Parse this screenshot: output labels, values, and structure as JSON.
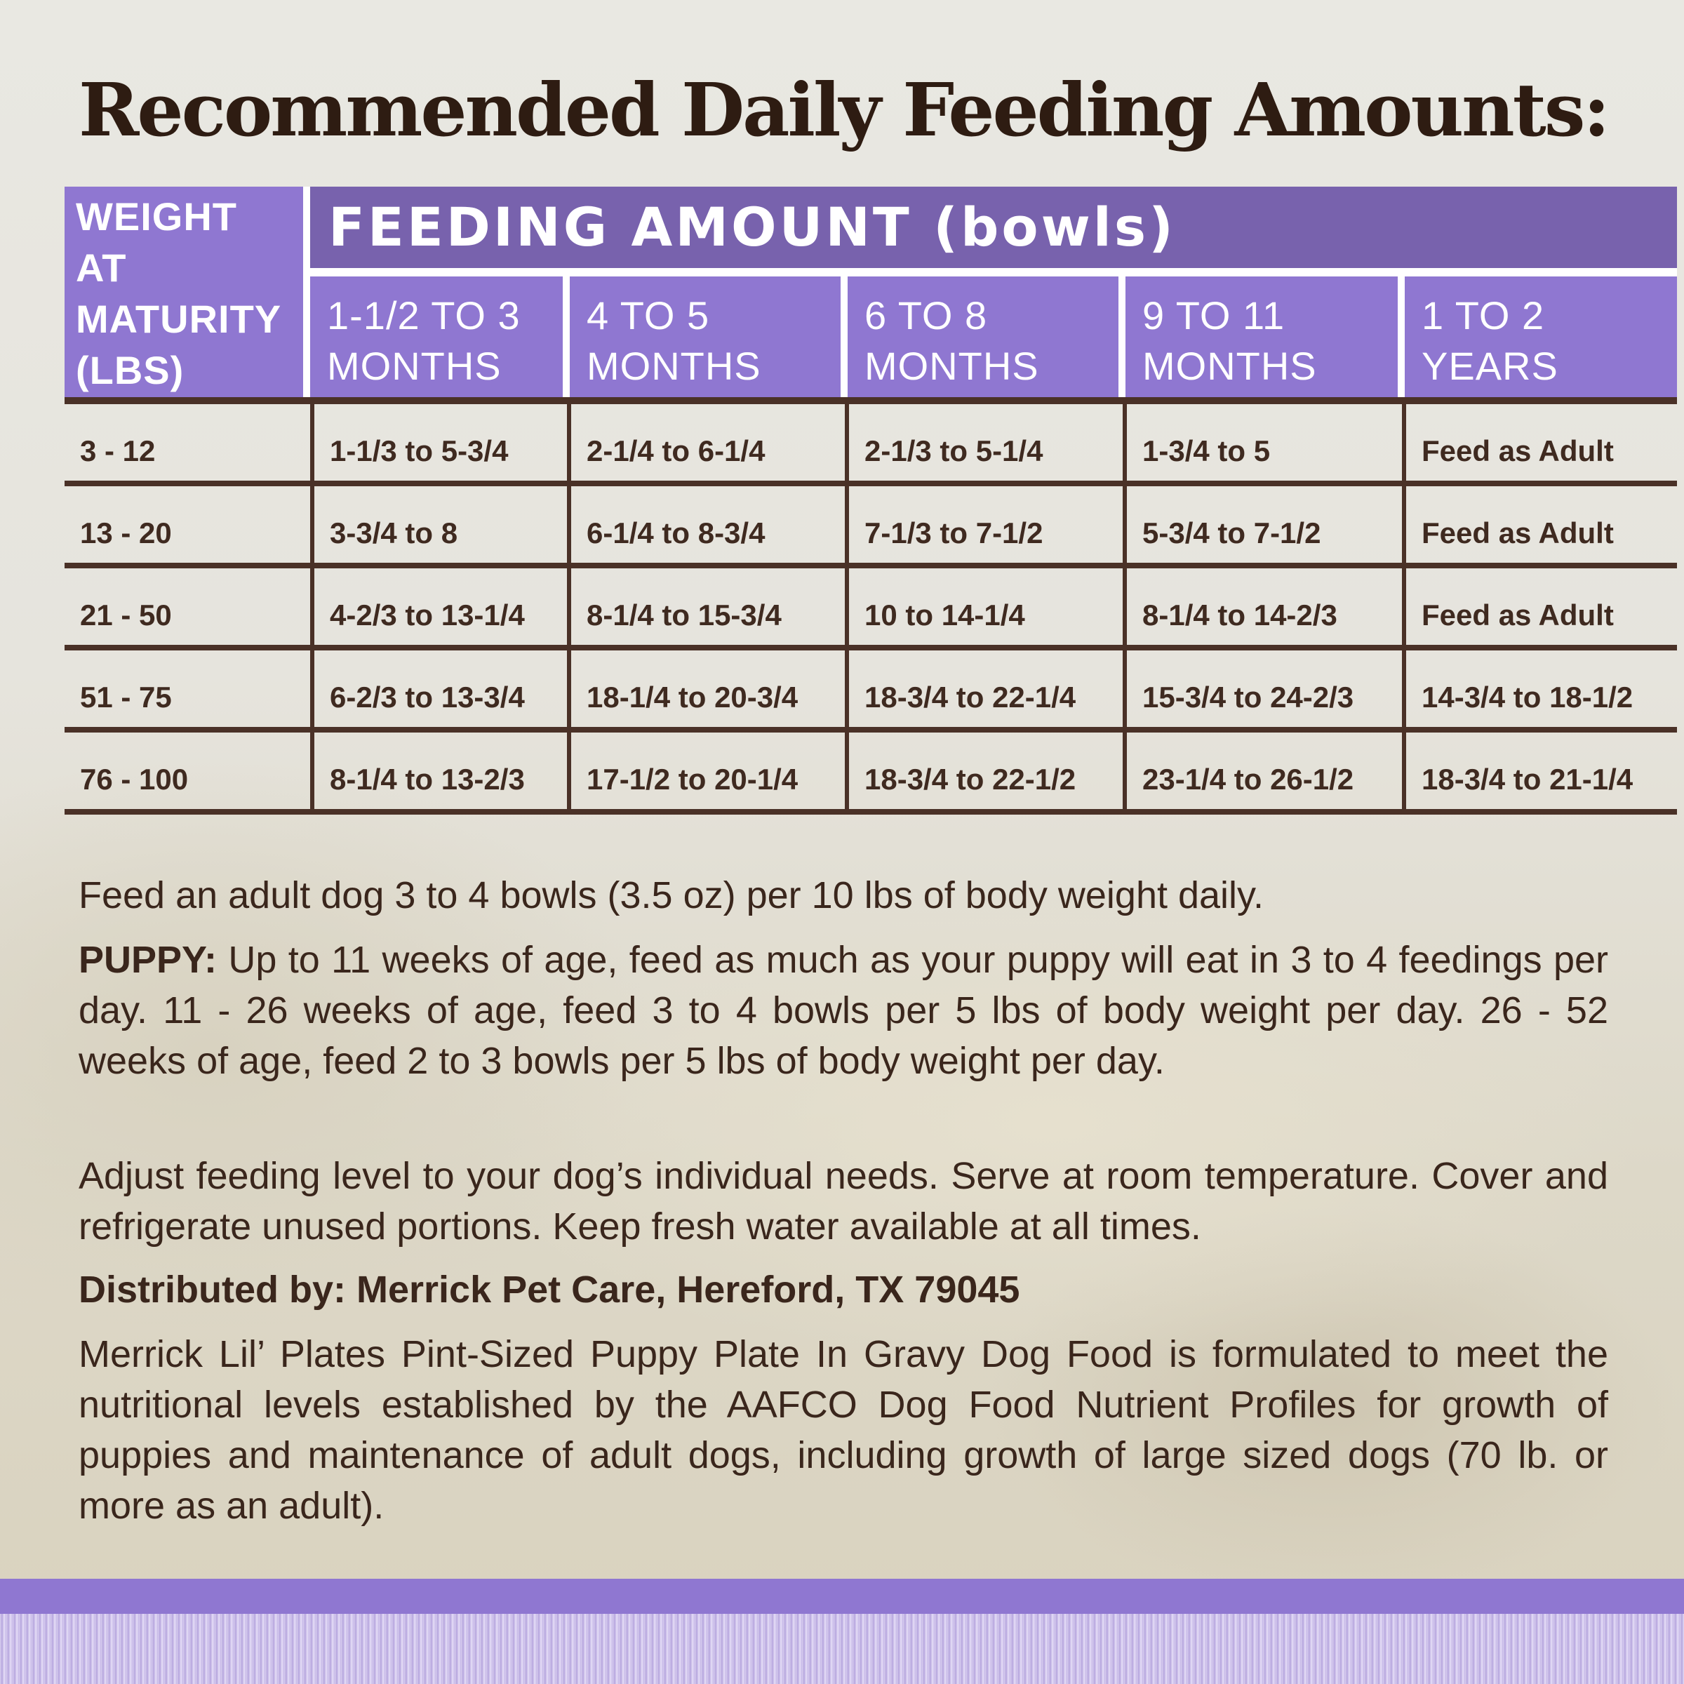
{
  "title": "Recommended Daily Feeding Amounts:",
  "table": {
    "weight_header": [
      "WEIGHT",
      "AT",
      "MATURITY",
      "(LBS)"
    ],
    "main_header": "FEEDING AMOUNT (bowls)",
    "age_columns": [
      {
        "line1": "1-1/2 TO 3",
        "line2": "MONTHS"
      },
      {
        "line1": "4 TO 5",
        "line2": "MONTHS"
      },
      {
        "line1": "6 TO 8",
        "line2": "MONTHS"
      },
      {
        "line1": "9 TO 11",
        "line2": "MONTHS"
      },
      {
        "line1": "1 TO 2",
        "line2": "YEARS"
      }
    ],
    "rows": [
      {
        "weight": "3 - 12",
        "values": [
          "1-1/3 to 5-3/4",
          "2-1/4 to 6-1/4",
          "2-1/3 to 5-1/4",
          "1-3/4 to 5",
          "Feed as Adult"
        ]
      },
      {
        "weight": "13 - 20",
        "values": [
          "3-3/4 to 8",
          "6-1/4 to 8-3/4",
          "7-1/3 to 7-1/2",
          "5-3/4 to 7-1/2",
          "Feed as Adult"
        ]
      },
      {
        "weight": "21 - 50",
        "values": [
          "4-2/3 to 13-1/4",
          "8-1/4 to 15-3/4",
          "10 to 14-1/4",
          "8-1/4 to 14-2/3",
          "Feed as Adult"
        ]
      },
      {
        "weight": "51 - 75",
        "values": [
          "6-2/3 to 13-3/4",
          "18-1/4 to 20-3/4",
          "18-3/4 to 22-1/4",
          "15-3/4 to 24-2/3",
          "14-3/4 to 18-1/2"
        ]
      },
      {
        "weight": "76 - 100",
        "values": [
          "8-1/4 to 13-2/3",
          "17-1/2 to 20-1/4",
          "18-3/4 to 22-1/2",
          "23-1/4 to 26-1/2",
          "18-3/4 to 21-1/4"
        ]
      }
    ]
  },
  "notes": {
    "adult": "Feed an adult dog 3 to 4 bowls (3.5 oz) per 10 lbs of body weight daily.",
    "puppy_label": "PUPPY:",
    "puppy_text": " Up to 11 weeks of age, feed as much as your puppy will eat in 3 to 4 feedings per day. 11 - 26 weeks of age, feed 3 to 4 bowls per 5 lbs of body weight per day. 26 - 52 weeks of age, feed 2 to 3 bowls per 5 lbs of body weight per day.",
    "adjust": "Adjust feeding level to your dog’s individual needs. Serve at room temperature. Cover and refrigerate unused portions. Keep fresh water available at all times.",
    "distributor": "Distributed by: Merrick Pet Care, Hereford, TX 79045",
    "aafco": "Merrick Lil’ Plates Pint-Sized Puppy Plate In Gravy Dog Food is formulated to meet the nutritional levels established by the AAFCO Dog Food Nutrient Profiles for growth of puppies and maintenance of adult dogs, including growth of large sized dogs (70 lb. or more as an adult)."
  },
  "colors": {
    "header_purple": "#8f77d1",
    "header_dark_purple": "#7862ad",
    "text_brown": "#3f2a20",
    "grid_brown": "#4a3127"
  }
}
